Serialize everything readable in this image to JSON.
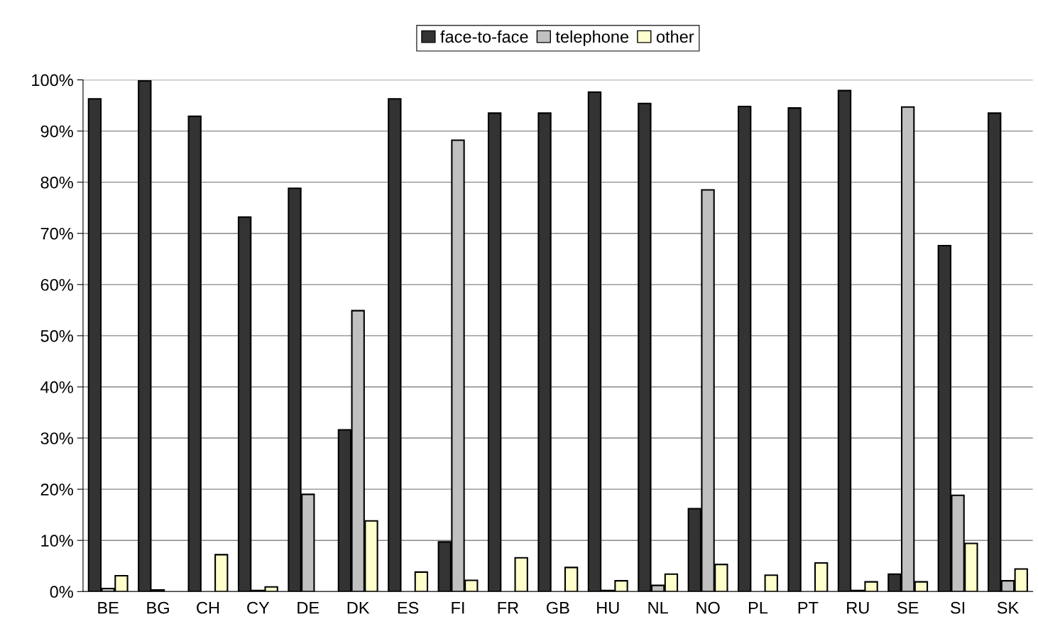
{
  "chart_data": {
    "type": "bar",
    "categories": [
      "BE",
      "BG",
      "CH",
      "CY",
      "DE",
      "DK",
      "ES",
      "FI",
      "FR",
      "GB",
      "HU",
      "NL",
      "NO",
      "PL",
      "PT",
      "RU",
      "SE",
      "SI",
      "SK"
    ],
    "series": [
      {
        "name": "face-to-face",
        "color": "#333333",
        "values": [
          96.3,
          99.8,
          92.9,
          73.2,
          78.8,
          31.6,
          96.3,
          9.7,
          93.5,
          93.5,
          97.6,
          95.4,
          16.2,
          94.8,
          94.5,
          97.9,
          3.4,
          67.6,
          93.5
        ]
      },
      {
        "name": "telephone",
        "color": "#c0c0c0",
        "values": [
          0.6,
          0.3,
          null,
          0.2,
          19.0,
          54.9,
          null,
          88.2,
          null,
          null,
          0.2,
          1.2,
          78.5,
          null,
          null,
          0.2,
          94.7,
          18.8,
          2.1
        ]
      },
      {
        "name": "other",
        "color": "#ffffcc",
        "values": [
          3.1,
          null,
          7.2,
          0.9,
          null,
          13.8,
          3.8,
          2.2,
          6.6,
          4.7,
          2.1,
          3.4,
          5.3,
          3.2,
          5.6,
          1.9,
          1.9,
          9.4,
          4.4
        ]
      }
    ],
    "ylim": [
      0,
      100
    ],
    "yticks": [
      {
        "value": 0,
        "label": "0%"
      },
      {
        "value": 10,
        "label": "10%"
      },
      {
        "value": 20,
        "label": "20%"
      },
      {
        "value": 30,
        "label": "30%"
      },
      {
        "value": 40,
        "label": "40%"
      },
      {
        "value": 50,
        "label": "50%"
      },
      {
        "value": 60,
        "label": "60%"
      },
      {
        "value": 70,
        "label": "70%"
      },
      {
        "value": 80,
        "label": "80%"
      },
      {
        "value": 90,
        "label": "90%"
      },
      {
        "value": 100,
        "label": "100%"
      }
    ],
    "grid": "y",
    "legend": "top"
  }
}
